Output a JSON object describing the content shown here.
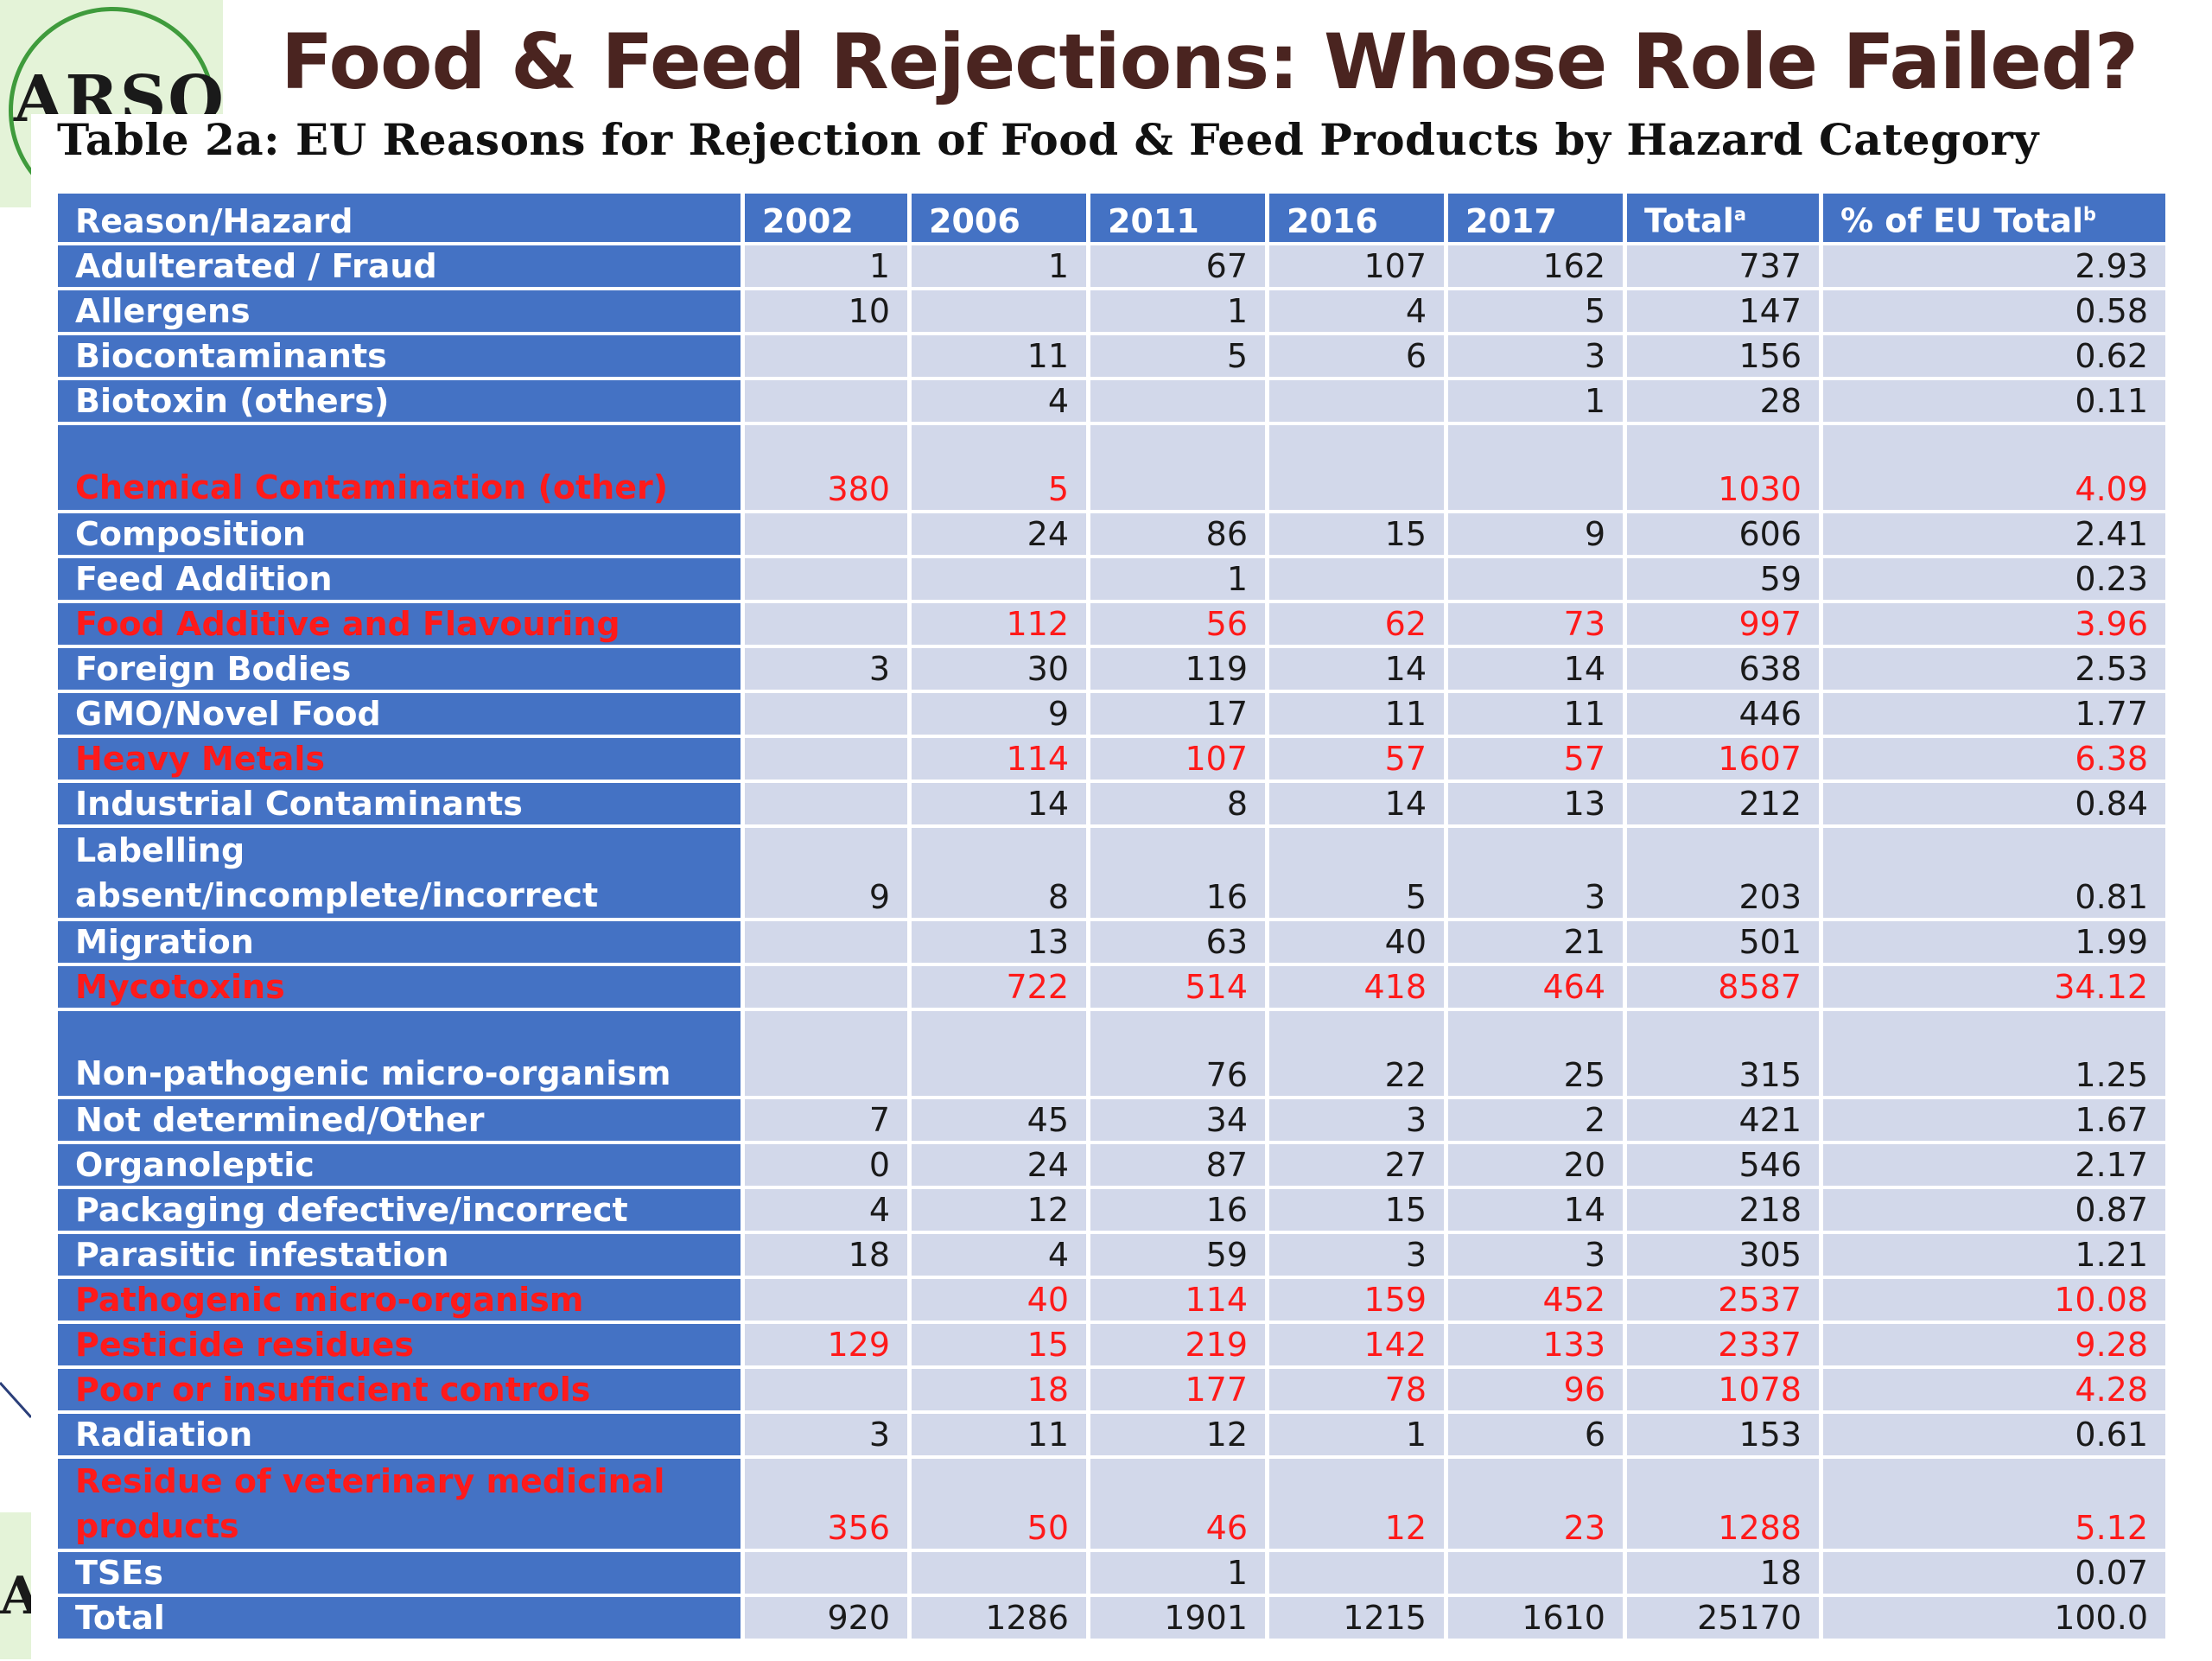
{
  "slide": {
    "title": "Food & Feed Rejections: Whose Role Failed?",
    "logo_text": "ARSO",
    "logo_text_bottom": "A"
  },
  "table": {
    "title": "Table 2a: EU Reasons for Rejection of Food & Feed Products by Hazard Category",
    "columns": [
      "Reason/Hazard",
      "2002",
      "2006",
      "2011",
      "2016",
      "2017",
      "Total",
      "% of EU Total"
    ],
    "column_superscripts": {
      "Total": "a",
      "% of EU Total": "b"
    },
    "rows": [
      {
        "label": "Adulterated / Fraud",
        "values": [
          "1",
          "1",
          "67",
          "107",
          "162",
          "737",
          "2.93"
        ]
      },
      {
        "label": "Allergens",
        "values": [
          "10",
          "",
          "1",
          "4",
          "5",
          "147",
          "0.58"
        ]
      },
      {
        "label": "Biocontaminants",
        "values": [
          "",
          "11",
          "5",
          "6",
          "3",
          "156",
          "0.62"
        ]
      },
      {
        "label": "Biotoxin (others)",
        "values": [
          "",
          "4",
          "",
          "",
          "1",
          "28",
          "0.11"
        ]
      },
      {
        "label": "Chemical Contamination (other)",
        "values": [
          "380",
          "5",
          "",
          "",
          "",
          "1030",
          "4.09"
        ],
        "highlight": true
      },
      {
        "label": "Composition",
        "values": [
          "",
          "24",
          "86",
          "15",
          "9",
          "606",
          "2.41"
        ]
      },
      {
        "label": "Feed Addition",
        "values": [
          "",
          "",
          "1",
          "",
          "",
          "59",
          "0.23"
        ]
      },
      {
        "label": "Food Additive and Flavouring",
        "values": [
          "",
          "112",
          "56",
          "62",
          "73",
          "997",
          "3.96"
        ],
        "highlight": true
      },
      {
        "label": "Foreign Bodies",
        "values": [
          "3",
          "30",
          "119",
          "14",
          "14",
          "638",
          "2.53"
        ]
      },
      {
        "label": "GMO/Novel Food",
        "values": [
          "",
          "9",
          "17",
          "11",
          "11",
          "446",
          "1.77"
        ]
      },
      {
        "label": "Heavy Metals",
        "values": [
          "",
          "114",
          "107",
          "57",
          "57",
          "1607",
          "6.38"
        ],
        "highlight": true
      },
      {
        "label": "Industrial Contaminants",
        "values": [
          "",
          "14",
          "8",
          "14",
          "13",
          "212",
          "0.84"
        ]
      },
      {
        "label": "Labelling absent/incomplete/incorrect",
        "values": [
          "9",
          "8",
          "16",
          "5",
          "3",
          "203",
          "0.81"
        ]
      },
      {
        "label": "Migration",
        "values": [
          "",
          "13",
          "63",
          "40",
          "21",
          "501",
          "1.99"
        ]
      },
      {
        "label": "Mycotoxins",
        "values": [
          "",
          "722",
          "514",
          "418",
          "464",
          "8587",
          "34.12"
        ],
        "highlight": true
      },
      {
        "label": "Non-pathogenic micro-organism",
        "values": [
          "",
          "",
          "76",
          "22",
          "25",
          "315",
          "1.25"
        ]
      },
      {
        "label": "Not determined/Other",
        "values": [
          "7",
          "45",
          "34",
          "3",
          "2",
          "421",
          "1.67"
        ]
      },
      {
        "label": "Organoleptic",
        "values": [
          "0",
          "24",
          "87",
          "27",
          "20",
          "546",
          "2.17"
        ]
      },
      {
        "label": "Packaging defective/incorrect",
        "values": [
          "4",
          "12",
          "16",
          "15",
          "14",
          "218",
          "0.87"
        ]
      },
      {
        "label": "Parasitic infestation",
        "values": [
          "18",
          "4",
          "59",
          "3",
          "3",
          "305",
          "1.21"
        ]
      },
      {
        "label": "Pathogenic micro-organism",
        "values": [
          "",
          "40",
          "114",
          "159",
          "452",
          "2537",
          "10.08"
        ],
        "highlight": true
      },
      {
        "label": "Pesticide residues",
        "values": [
          "129",
          "15",
          "219",
          "142",
          "133",
          "2337",
          "9.28"
        ],
        "highlight": true
      },
      {
        "label": "Poor or insufficient controls",
        "values": [
          "",
          "18",
          "177",
          "78",
          "96",
          "1078",
          "4.28"
        ],
        "highlight": true
      },
      {
        "label": "Radiation",
        "values": [
          "3",
          "11",
          "12",
          "1",
          "6",
          "153",
          "0.61"
        ]
      },
      {
        "label": "Residue of veterinary medicinal products",
        "values": [
          "356",
          "50",
          "46",
          "12",
          "23",
          "1288",
          "5.12"
        ],
        "highlight": true
      },
      {
        "label": "TSEs",
        "values": [
          "",
          "",
          "1",
          "",
          "",
          "18",
          "0.07"
        ]
      }
    ],
    "total_row": {
      "label": "Total",
      "values": [
        "920",
        "1286",
        "1901",
        "1215",
        "1610",
        "25170",
        "100.0"
      ]
    }
  },
  "colors": {
    "header_blue": "#4472c4",
    "cell_fill": "#d2d8ea",
    "highlight_red": "#ff1a1a",
    "title_brown": "#4a2420",
    "logo_green": "#3f9b3c"
  }
}
